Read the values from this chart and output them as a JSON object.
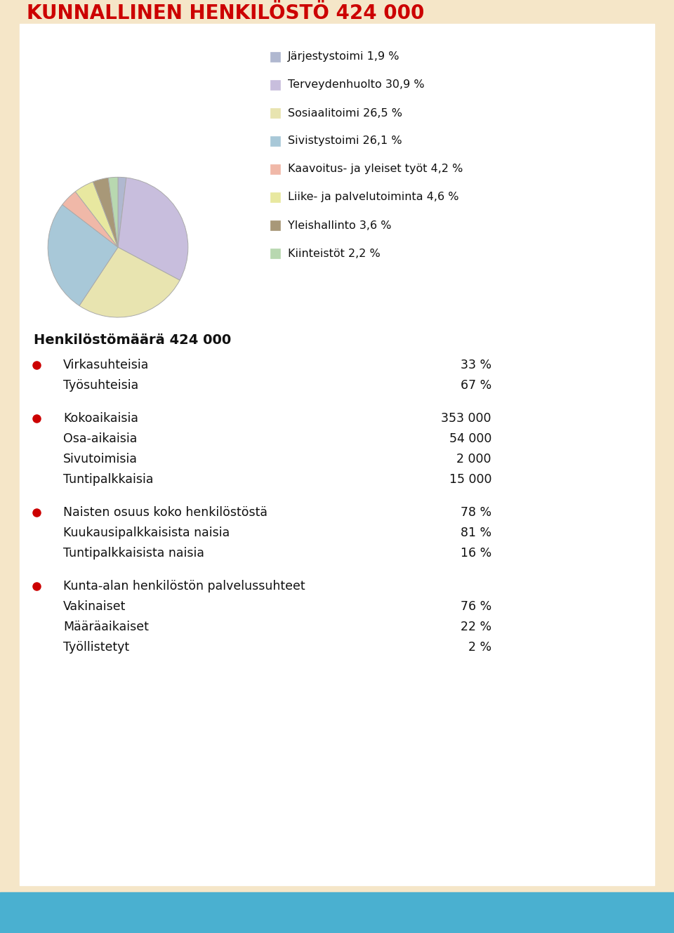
{
  "title": "KUNNALLINEN HENKILÖSTÖ 424 000",
  "title_color": "#cc0000",
  "background_color": "#f5e6c8",
  "card_color": "#ffffff",
  "pie_values": [
    1.9,
    30.9,
    26.5,
    26.1,
    4.2,
    4.6,
    3.6,
    2.2
  ],
  "pie_colors": [
    "#b0b8d0",
    "#c8bedd",
    "#e8e4b0",
    "#a8c8d8",
    "#f0b8a8",
    "#e8e8a0",
    "#a89878",
    "#b8d8b0"
  ],
  "pie_labels": [
    "Järjestystoimi 1,9 %",
    "Terveydenhuolto 30,9 %",
    "Sosiaalitoimi 26,5 %",
    "Sivistystoimi 26,1 %",
    "Kaavoitus- ja yleiset työt 4,2 %",
    "Liike- ja palvelutoiminta 4,6 %",
    "Yleishallinto 3,6 %",
    "Kiinteistöt 2,2 %"
  ],
  "section_title": "Henkilöstömäärä 424 000",
  "sections": [
    {
      "has_bullet": true,
      "bullet_color": "#cc0000",
      "rows": [
        {
          "label": "Virkasuhteisia",
          "value": "33 %"
        },
        {
          "label": "Työsuhteisia",
          "value": "67 %"
        }
      ]
    },
    {
      "has_bullet": true,
      "bullet_color": "#cc0000",
      "rows": [
        {
          "label": "Kokoaikaisia",
          "value": "353 000"
        },
        {
          "label": "Osa-aikaisia",
          "value": "54 000"
        },
        {
          "label": "Sivutoimisia",
          "value": "2 000"
        },
        {
          "label": "Tuntipalkkaisia",
          "value": "15 000"
        }
      ]
    },
    {
      "has_bullet": true,
      "bullet_color": "#cc0000",
      "rows": [
        {
          "label": "Naisten osuus koko henkilöstöstä",
          "value": "78 %"
        },
        {
          "label": "Kuukausipalkkaisista naisia",
          "value": "81 %"
        },
        {
          "label": "Tuntipalkkaisista naisia",
          "value": "16 %"
        }
      ]
    },
    {
      "has_bullet": true,
      "bullet_color": "#cc0000",
      "rows": [
        {
          "label": "Kunta-alan henkilöstön palvelussuhteet",
          "value": ""
        },
        {
          "label": "Vakinaiset",
          "value": "76 %"
        },
        {
          "label": "Määräaikaiset",
          "value": "22 %"
        },
        {
          "label": "Työllistetyt",
          "value": "2 %"
        }
      ]
    }
  ],
  "bottom_bar_color": "#4ab0d0",
  "pie_startangle": 90,
  "pie_edge_color": "#888888",
  "legend_square_size": 14,
  "legend_font_size": 11.5,
  "section_font_size": 12.5,
  "section_title_font_size": 14,
  "title_font_size": 20
}
